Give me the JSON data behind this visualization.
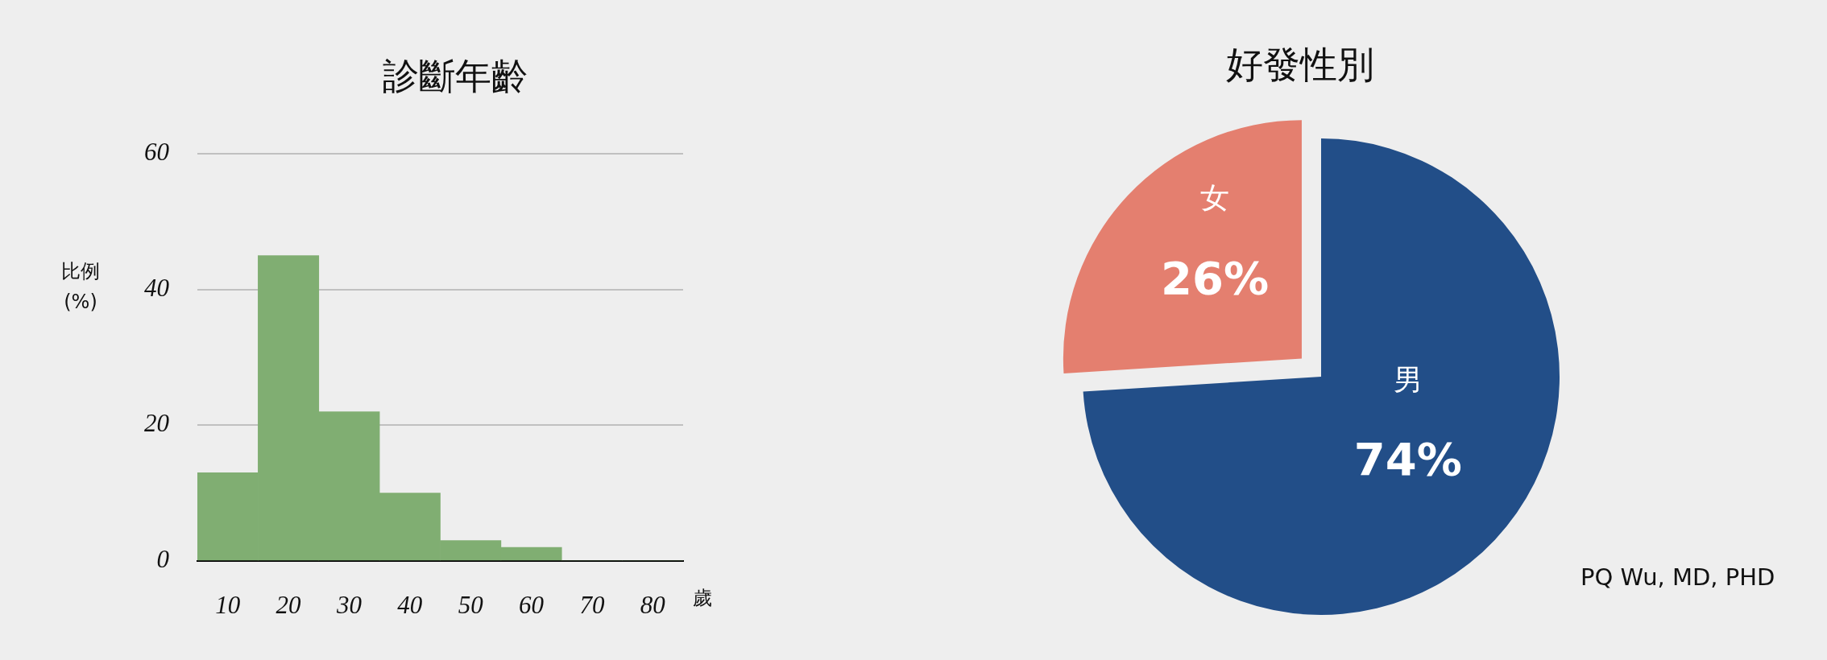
{
  "chart_data": [
    {
      "type": "histogram",
      "title": "診斷年齡",
      "ylabel": "比例 (%)",
      "xlabel": "歲",
      "bins": [
        5,
        15,
        25,
        35,
        45,
        55,
        65,
        75,
        85
      ],
      "values": [
        13,
        45,
        22,
        10,
        3,
        2,
        0,
        0
      ],
      "color": "#80ae72",
      "xlim": [
        5,
        85
      ],
      "xticks": [
        10,
        20,
        30,
        40,
        50,
        60,
        70,
        80
      ],
      "ylim": [
        0,
        60
      ],
      "yticks": [
        0,
        20,
        40,
        60
      ],
      "grid": "y",
      "legend": false
    },
    {
      "type": "pie",
      "title": "好發性別",
      "categories": [
        "男",
        "女"
      ],
      "values": [
        74,
        26
      ],
      "colors": [
        "#224e88",
        "#e47f6f"
      ],
      "value_labels": [
        "74%",
        "26%"
      ],
      "annotations": [
        "PQ Wu, MD, PHD"
      ],
      "legend": false
    }
  ]
}
